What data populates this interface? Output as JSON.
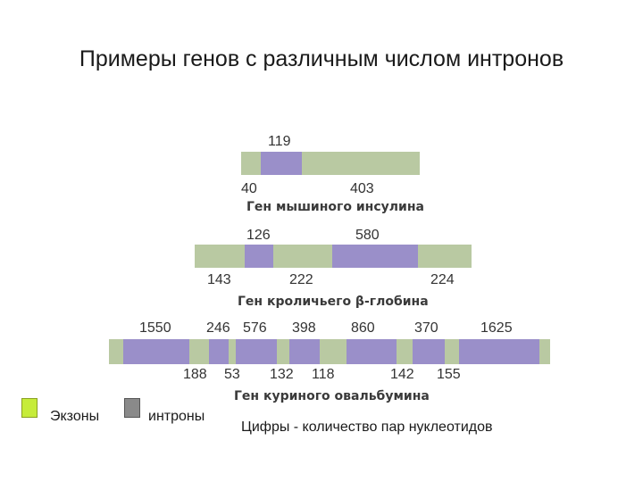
{
  "title": "Примеры генов с различным числом интронов",
  "colors": {
    "exon": "#b9c9a2",
    "intron": "#9a8fc9",
    "exon_legend": "#c6ec3a",
    "intron_legend": "#8a8a8a"
  },
  "genes": [
    {
      "name": "Ген мышиного инсулина",
      "top_labels": [
        "119"
      ],
      "bottom_labels": [
        "40",
        "403"
      ]
    },
    {
      "name": "Ген кроличьего β-глобина",
      "top_labels": [
        "126",
        "580"
      ],
      "bottom_labels": [
        "143",
        "222",
        "224"
      ]
    },
    {
      "name": "Ген куриного овальбумина",
      "top_labels": [
        "1550",
        "246",
        "576",
        "398",
        "860",
        "370",
        "1625"
      ],
      "bottom_labels": [
        "188",
        "53",
        "132",
        "118",
        "142",
        "155"
      ]
    }
  ],
  "legend": {
    "exons_label": "Экзоны",
    "introns_label": "интроны",
    "note": "Цифры - количество пар нуклеотидов"
  }
}
